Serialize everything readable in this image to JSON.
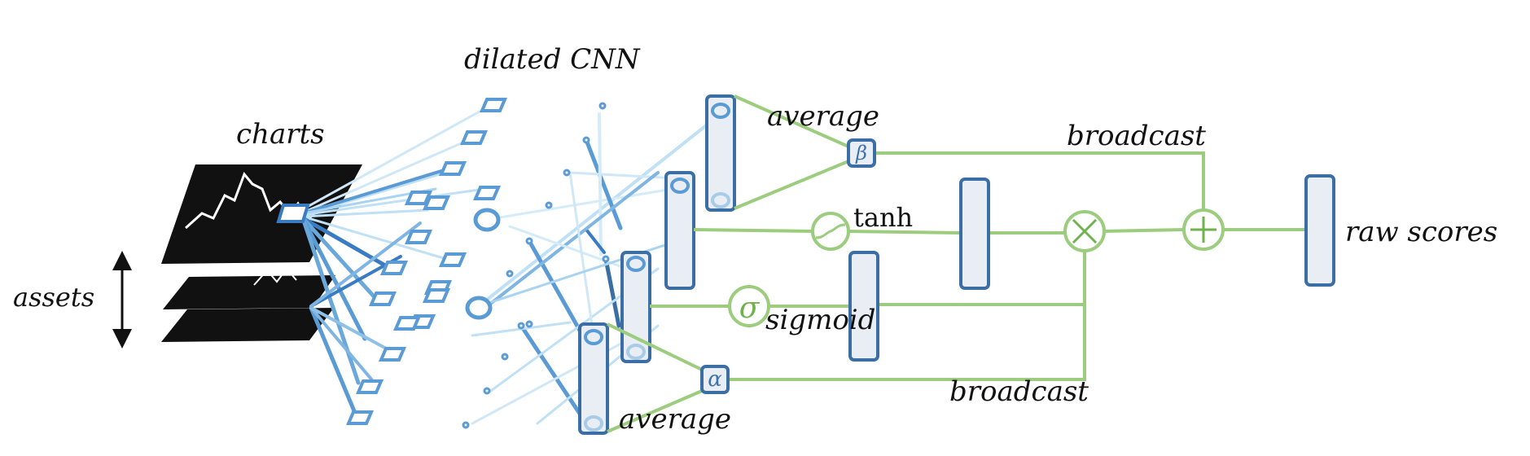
{
  "labels": {
    "dilated_cnn": "dilated CNN",
    "charts": "charts",
    "assets": "assets",
    "average_top": "average",
    "average_bottom": "average",
    "broadcast_top": "broadcast",
    "broadcast_bottom": "broadcast",
    "tanh": "tanh",
    "sigmoid": "sigmoid",
    "raw_scores": "raw scores"
  },
  "symbols": {
    "beta": "β",
    "alpha": "α",
    "sigma": "σ"
  },
  "colors": {
    "blue_dark": "#3a6ea5",
    "blue_mid": "#5b9bd5",
    "blue_light": "#bfe0f5",
    "green": "#9ccc7e",
    "green_dark": "#6fb24e",
    "box_fill": "#e9edf4",
    "chart_black": "#111111"
  }
}
